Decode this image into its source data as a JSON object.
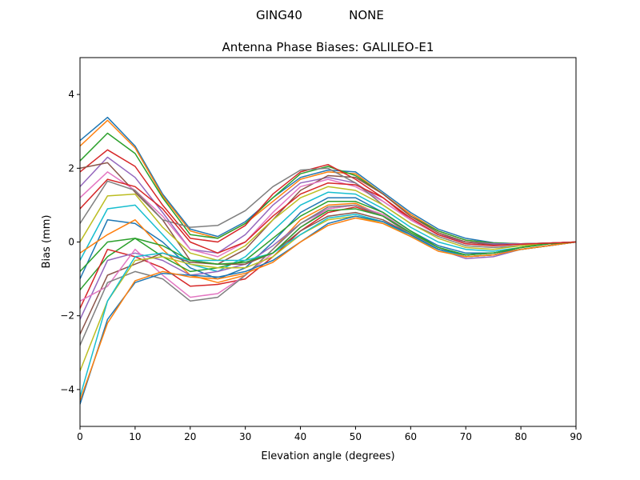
{
  "chart_data": {
    "type": "line",
    "suptitle_left": "GING40",
    "suptitle_right": "NONE",
    "title": "Antenna Phase Biases: GALILEO-E1",
    "xlabel": "Elevation angle (degrees)",
    "ylabel": "Bias (mm)",
    "xlim": [
      0,
      90
    ],
    "ylim": [
      -5,
      5
    ],
    "xticks": [
      0,
      10,
      20,
      30,
      40,
      50,
      60,
      70,
      80,
      90
    ],
    "yticks": [
      -4,
      -2,
      0,
      2,
      4
    ],
    "ytick_labels": [
      "−4",
      "−2",
      "0",
      "2",
      "4"
    ],
    "grid": false,
    "legend": "none",
    "colors": [
      "#1f77b4",
      "#ff7f0e",
      "#2ca02c",
      "#d62728",
      "#9467bd",
      "#8c564b",
      "#e377c2",
      "#7f7f7f",
      "#bcbd22",
      "#17becf"
    ],
    "x": [
      0,
      5,
      10,
      15,
      20,
      25,
      30,
      35,
      40,
      45,
      50,
      55,
      60,
      65,
      70,
      75,
      80,
      85,
      90
    ],
    "series": [
      {
        "values": [
          2.75,
          3.38,
          2.6,
          1.3,
          0.35,
          0.15,
          0.55,
          1.2,
          1.75,
          1.95,
          1.9,
          1.35,
          0.8,
          0.35,
          0.1,
          -0.02,
          -0.05,
          -0.03,
          0
        ]
      },
      {
        "values": [
          2.6,
          3.3,
          2.55,
          1.25,
          0.3,
          0.1,
          0.5,
          1.1,
          1.7,
          1.9,
          1.85,
          1.3,
          0.75,
          0.3,
          0.05,
          -0.03,
          -0.05,
          -0.03,
          0
        ]
      },
      {
        "values": [
          2.2,
          2.95,
          2.4,
          1.2,
          0.2,
          0.1,
          0.5,
          1.2,
          1.85,
          2.05,
          1.8,
          1.3,
          0.7,
          0.3,
          0.05,
          -0.03,
          -0.05,
          -0.03,
          0
        ]
      },
      {
        "values": [
          1.9,
          2.5,
          2.05,
          1.0,
          0.1,
          0.0,
          0.45,
          1.3,
          1.9,
          2.1,
          1.7,
          1.2,
          0.6,
          0.2,
          0.0,
          -0.05,
          -0.06,
          -0.03,
          0
        ]
      },
      {
        "values": [
          1.5,
          2.3,
          1.75,
          0.8,
          -0.2,
          -0.3,
          0.2,
          1.0,
          1.6,
          1.75,
          1.6,
          1.1,
          0.6,
          0.2,
          0.0,
          -0.05,
          -0.05,
          -0.03,
          0
        ]
      },
      {
        "values": [
          2.0,
          2.15,
          1.35,
          0.6,
          -0.5,
          -0.6,
          -0.2,
          0.6,
          1.4,
          1.8,
          1.75,
          1.3,
          0.7,
          0.25,
          0.0,
          -0.08,
          -0.06,
          -0.03,
          0
        ]
      },
      {
        "values": [
          1.2,
          1.9,
          1.4,
          0.7,
          -0.2,
          -0.4,
          0.0,
          0.8,
          1.5,
          1.7,
          1.5,
          1.1,
          0.6,
          0.2,
          -0.05,
          -0.1,
          -0.06,
          -0.03,
          0
        ]
      },
      {
        "values": [
          0.5,
          1.65,
          1.4,
          0.6,
          0.4,
          0.45,
          0.85,
          1.5,
          1.95,
          2.0,
          1.6,
          1.0,
          0.5,
          0.15,
          -0.1,
          -0.15,
          -0.1,
          -0.05,
          0
        ]
      },
      {
        "values": [
          0.0,
          1.25,
          1.3,
          0.4,
          -0.3,
          -0.5,
          -0.1,
          0.6,
          1.2,
          1.5,
          1.4,
          1.0,
          0.5,
          0.1,
          -0.15,
          -0.2,
          -0.1,
          -0.05,
          0
        ]
      },
      {
        "values": [
          -0.5,
          0.9,
          1.0,
          0.2,
          -0.6,
          -0.8,
          -0.4,
          0.3,
          1.0,
          1.35,
          1.3,
          0.9,
          0.4,
          0.0,
          -0.2,
          -0.25,
          -0.15,
          -0.05,
          0
        ]
      },
      {
        "values": [
          -1.0,
          0.6,
          0.5,
          0.0,
          -0.7,
          -1.0,
          -0.7,
          0.0,
          0.8,
          1.2,
          1.2,
          0.8,
          0.3,
          -0.1,
          -0.3,
          -0.3,
          -0.15,
          -0.05,
          0
        ]
      },
      {
        "values": [
          -0.3,
          0.2,
          0.6,
          -0.2,
          -0.9,
          -1.1,
          -0.9,
          -0.2,
          0.6,
          1.0,
          1.05,
          0.7,
          0.2,
          -0.2,
          -0.35,
          -0.3,
          -0.15,
          -0.05,
          0
        ]
      },
      {
        "values": [
          -1.3,
          -0.4,
          0.1,
          -0.4,
          -0.8,
          -0.7,
          -0.5,
          0.1,
          0.7,
          1.1,
          1.1,
          0.8,
          0.3,
          -0.15,
          -0.35,
          -0.3,
          -0.15,
          -0.05,
          0
        ]
      },
      {
        "values": [
          -1.8,
          -0.2,
          -0.4,
          -0.7,
          -1.2,
          -1.15,
          -1.0,
          -0.4,
          0.3,
          0.8,
          0.95,
          0.7,
          0.2,
          -0.2,
          -0.4,
          -0.35,
          -0.2,
          -0.1,
          0
        ]
      },
      {
        "values": [
          -2.1,
          -0.5,
          -0.3,
          -0.5,
          -0.9,
          -0.8,
          -0.6,
          -0.1,
          0.5,
          0.9,
          1.0,
          0.7,
          0.2,
          -0.2,
          -0.45,
          -0.4,
          -0.2,
          -0.1,
          0
        ]
      },
      {
        "values": [
          -2.5,
          -0.9,
          -0.6,
          -0.3,
          -0.55,
          -0.6,
          -0.6,
          -0.3,
          0.3,
          0.7,
          0.8,
          0.6,
          0.2,
          -0.2,
          -0.4,
          -0.35,
          -0.2,
          -0.1,
          0
        ]
      },
      {
        "values": [
          -1.6,
          -1.2,
          -0.2,
          -0.9,
          -1.5,
          -1.4,
          -0.9,
          -0.3,
          0.4,
          0.9,
          1.0,
          0.75,
          0.25,
          -0.2,
          -0.4,
          -0.35,
          -0.2,
          -0.1,
          0
        ]
      },
      {
        "values": [
          -2.8,
          -1.1,
          -0.8,
          -1.0,
          -1.6,
          -1.5,
          -0.9,
          -0.2,
          0.5,
          0.95,
          1.0,
          0.7,
          0.2,
          -0.2,
          -0.4,
          -0.35,
          -0.2,
          -0.1,
          0
        ]
      },
      {
        "values": [
          -3.5,
          -1.6,
          -0.5,
          -0.4,
          -0.6,
          -0.7,
          -0.7,
          -0.4,
          0.2,
          0.6,
          0.7,
          0.5,
          0.15,
          -0.2,
          -0.4,
          -0.35,
          -0.2,
          -0.1,
          0
        ]
      },
      {
        "values": [
          -4.2,
          -1.6,
          -0.4,
          -0.3,
          -0.5,
          -0.5,
          -0.5,
          -0.3,
          0.2,
          0.65,
          0.75,
          0.55,
          0.15,
          -0.2,
          -0.4,
          -0.35,
          -0.2,
          -0.1,
          0
        ]
      },
      {
        "values": [
          -4.4,
          -2.1,
          -1.1,
          -0.85,
          -0.9,
          -0.95,
          -0.8,
          -0.5,
          0.0,
          0.5,
          0.7,
          0.55,
          0.2,
          -0.2,
          -0.35,
          -0.3,
          -0.2,
          -0.1,
          0
        ]
      },
      {
        "values": [
          -4.3,
          -2.2,
          -1.05,
          -0.8,
          -0.95,
          -1.0,
          -0.85,
          -0.55,
          0.0,
          0.45,
          0.65,
          0.5,
          0.15,
          -0.25,
          -0.4,
          -0.35,
          -0.2,
          -0.1,
          0
        ]
      },
      {
        "values": [
          -0.8,
          0.0,
          0.1,
          -0.1,
          -0.5,
          -0.6,
          -0.55,
          -0.3,
          0.4,
          0.85,
          0.9,
          0.7,
          0.25,
          -0.15,
          -0.35,
          -0.3,
          -0.15,
          -0.05,
          0
        ]
      },
      {
        "values": [
          0.9,
          1.7,
          1.5,
          0.9,
          0.0,
          -0.3,
          0.0,
          0.7,
          1.3,
          1.6,
          1.55,
          1.2,
          0.65,
          0.2,
          -0.05,
          -0.1,
          -0.06,
          -0.03,
          0
        ]
      }
    ]
  }
}
